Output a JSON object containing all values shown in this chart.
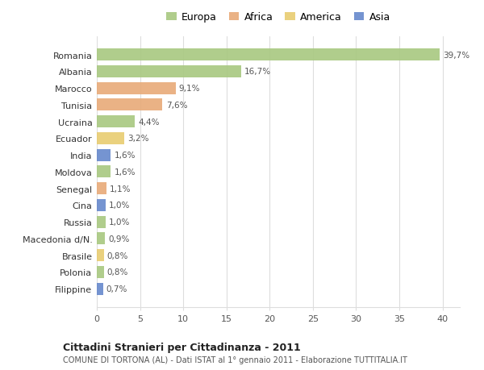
{
  "countries": [
    "Romania",
    "Albania",
    "Marocco",
    "Tunisia",
    "Ucraina",
    "Ecuador",
    "India",
    "Moldova",
    "Senegal",
    "Cina",
    "Russia",
    "Macedonia d/N.",
    "Brasile",
    "Polonia",
    "Filippine"
  ],
  "values": [
    39.7,
    16.7,
    9.1,
    7.6,
    4.4,
    3.2,
    1.6,
    1.6,
    1.1,
    1.0,
    1.0,
    0.9,
    0.8,
    0.8,
    0.7
  ],
  "labels": [
    "39,7%",
    "16,7%",
    "9,1%",
    "7,6%",
    "4,4%",
    "3,2%",
    "1,6%",
    "1,6%",
    "1,1%",
    "1,0%",
    "1,0%",
    "0,9%",
    "0,8%",
    "0,8%",
    "0,7%"
  ],
  "continents": [
    "Europa",
    "Europa",
    "Africa",
    "Africa",
    "Europa",
    "America",
    "Asia",
    "Europa",
    "Africa",
    "Asia",
    "Europa",
    "Europa",
    "America",
    "Europa",
    "Asia"
  ],
  "colors": {
    "Europa": "#a8c880",
    "Africa": "#e8aa78",
    "America": "#e8cc70",
    "Asia": "#6688cc"
  },
  "title": "Cittadini Stranieri per Cittadinanza - 2011",
  "subtitle": "COMUNE DI TORTONA (AL) - Dati ISTAT al 1° gennaio 2011 - Elaborazione TUTTITALIA.IT",
  "xlim": [
    0,
    42
  ],
  "xticks": [
    0,
    5,
    10,
    15,
    20,
    25,
    30,
    35,
    40
  ],
  "background_color": "#ffffff",
  "grid_color": "#dddddd"
}
